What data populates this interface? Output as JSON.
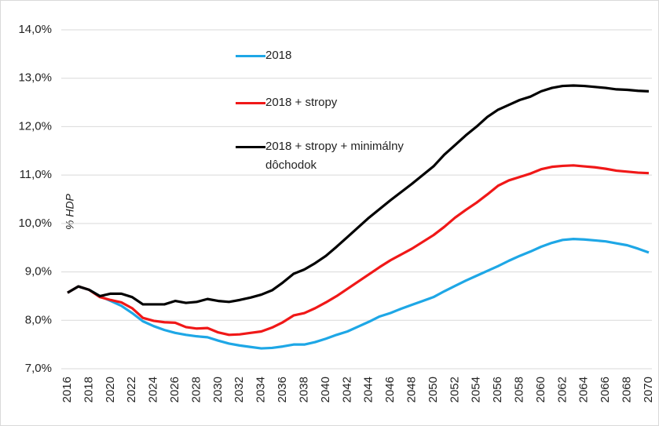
{
  "chart_data": {
    "type": "line",
    "y_label": "% HDP",
    "x": [
      2016,
      2017,
      2018,
      2019,
      2020,
      2021,
      2022,
      2023,
      2024,
      2025,
      2026,
      2027,
      2028,
      2029,
      2030,
      2031,
      2032,
      2033,
      2034,
      2035,
      2036,
      2037,
      2038,
      2039,
      2040,
      2041,
      2042,
      2043,
      2044,
      2045,
      2046,
      2047,
      2048,
      2049,
      2050,
      2051,
      2052,
      2053,
      2054,
      2055,
      2056,
      2057,
      2058,
      2059,
      2060,
      2061,
      2062,
      2063,
      2064,
      2065,
      2066,
      2067,
      2068,
      2069,
      2070
    ],
    "series": [
      {
        "name": "2018",
        "color": "#1ea7e6",
        "values": [
          8.57,
          8.7,
          8.63,
          8.5,
          8.4,
          8.3,
          8.15,
          7.98,
          7.88,
          7.8,
          7.74,
          7.7,
          7.67,
          7.65,
          7.58,
          7.52,
          7.48,
          7.45,
          7.42,
          7.43,
          7.46,
          7.5,
          7.5,
          7.55,
          7.62,
          7.7,
          7.77,
          7.87,
          7.97,
          8.08,
          8.15,
          8.24,
          8.32,
          8.4,
          8.48,
          8.6,
          8.71,
          8.82,
          8.92,
          9.02,
          9.12,
          9.23,
          9.33,
          9.42,
          9.52,
          9.6,
          9.66,
          9.68,
          9.67,
          9.65,
          9.63,
          9.59,
          9.55,
          9.48,
          9.4
        ]
      },
      {
        "name": "2018 + stropy",
        "color": "#f01818",
        "values": [
          8.57,
          8.7,
          8.63,
          8.48,
          8.42,
          8.37,
          8.25,
          8.05,
          7.99,
          7.96,
          7.95,
          7.86,
          7.83,
          7.84,
          7.75,
          7.7,
          7.71,
          7.74,
          7.77,
          7.85,
          7.96,
          8.1,
          8.15,
          8.25,
          8.37,
          8.5,
          8.65,
          8.8,
          8.95,
          9.1,
          9.24,
          9.36,
          9.48,
          9.62,
          9.76,
          9.93,
          10.12,
          10.28,
          10.43,
          10.6,
          10.78,
          10.89,
          10.96,
          11.03,
          11.12,
          11.17,
          11.19,
          11.2,
          11.18,
          11.16,
          11.13,
          11.09,
          11.07,
          11.05,
          11.04
        ]
      },
      {
        "name": "2018 + stropy + minimálny dôchodok",
        "color": "#000000",
        "values": [
          8.57,
          8.7,
          8.63,
          8.5,
          8.55,
          8.55,
          8.48,
          8.33,
          8.33,
          8.33,
          8.4,
          8.36,
          8.38,
          8.44,
          8.4,
          8.38,
          8.42,
          8.47,
          8.53,
          8.62,
          8.78,
          8.96,
          9.05,
          9.18,
          9.33,
          9.52,
          9.72,
          9.92,
          10.12,
          10.3,
          10.48,
          10.65,
          10.82,
          11.0,
          11.18,
          11.42,
          11.62,
          11.82,
          12.0,
          12.2,
          12.35,
          12.45,
          12.55,
          12.62,
          12.73,
          12.8,
          12.84,
          12.85,
          12.84,
          12.82,
          12.8,
          12.77,
          12.76,
          12.74,
          12.73
        ]
      }
    ],
    "xlim": [
      2016,
      2070
    ],
    "xticks": [
      2016,
      2018,
      2020,
      2022,
      2024,
      2026,
      2028,
      2030,
      2032,
      2034,
      2036,
      2038,
      2040,
      2042,
      2044,
      2046,
      2048,
      2050,
      2052,
      2054,
      2056,
      2058,
      2060,
      2062,
      2064,
      2066,
      2068,
      2070
    ],
    "ylim": [
      7,
      14
    ],
    "yticks": [
      {
        "value": 7,
        "label": "7,0%"
      },
      {
        "value": 8,
        "label": "8,0%"
      },
      {
        "value": 9,
        "label": "9,0%"
      },
      {
        "value": 10,
        "label": "10,0%"
      },
      {
        "value": 11,
        "label": "11,0%"
      },
      {
        "value": 12,
        "label": "12,0%"
      },
      {
        "value": 13,
        "label": "13,0%"
      },
      {
        "value": 14,
        "label": "14,0%"
      }
    ],
    "grid": true
  }
}
